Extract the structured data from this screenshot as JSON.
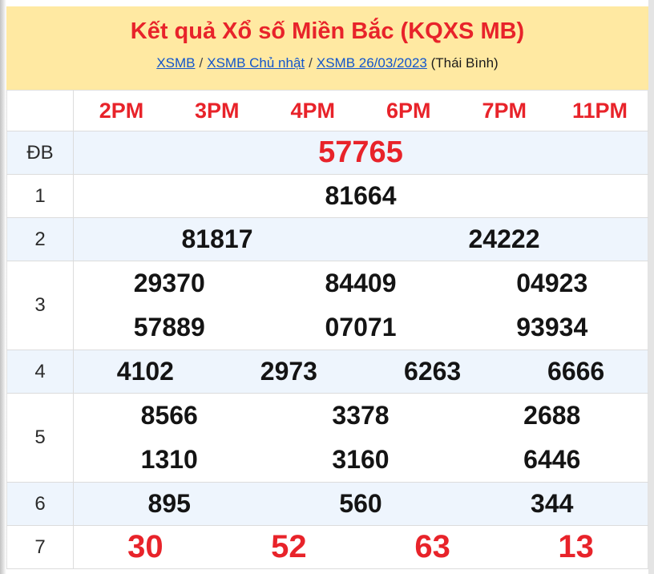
{
  "page": {
    "title": "Kết quả Xổ số Miền Bắc (KQXS MB)",
    "breadcrumb": {
      "link1": "XSMB",
      "sep1": "/",
      "link2": "XSMB Chủ nhật",
      "sep2": "/",
      "link3": "XSMB 26/03/2023",
      "suffix": "(Thái Bình)"
    }
  },
  "colors": {
    "header_yellow": "#FFE9A2",
    "accent_red": "#E8232A",
    "row_alt_blue": "#EEF5FD",
    "link_blue": "#1155CC"
  },
  "table": {
    "columns": [
      "2PM",
      "3PM",
      "4PM",
      "6PM",
      "7PM",
      "11PM"
    ],
    "rows": [
      {
        "label": "ĐB",
        "values": [
          "57765"
        ]
      },
      {
        "label": "1",
        "values": [
          "81664"
        ]
      },
      {
        "label": "2",
        "values": [
          "81817",
          "24222"
        ]
      },
      {
        "label": "3",
        "values": [
          [
            "29370",
            "84409",
            "04923"
          ],
          [
            "57889",
            "07071",
            "93934"
          ]
        ]
      },
      {
        "label": "4",
        "values": [
          "4102",
          "2973",
          "6263",
          "6666"
        ]
      },
      {
        "label": "5",
        "values": [
          [
            "8566",
            "3378",
            "2688"
          ],
          [
            "1310",
            "3160",
            "6446"
          ]
        ]
      },
      {
        "label": "6",
        "values": [
          "895",
          "560",
          "344"
        ]
      },
      {
        "label": "7",
        "values": [
          "30",
          "52",
          "63",
          "13"
        ]
      }
    ]
  }
}
